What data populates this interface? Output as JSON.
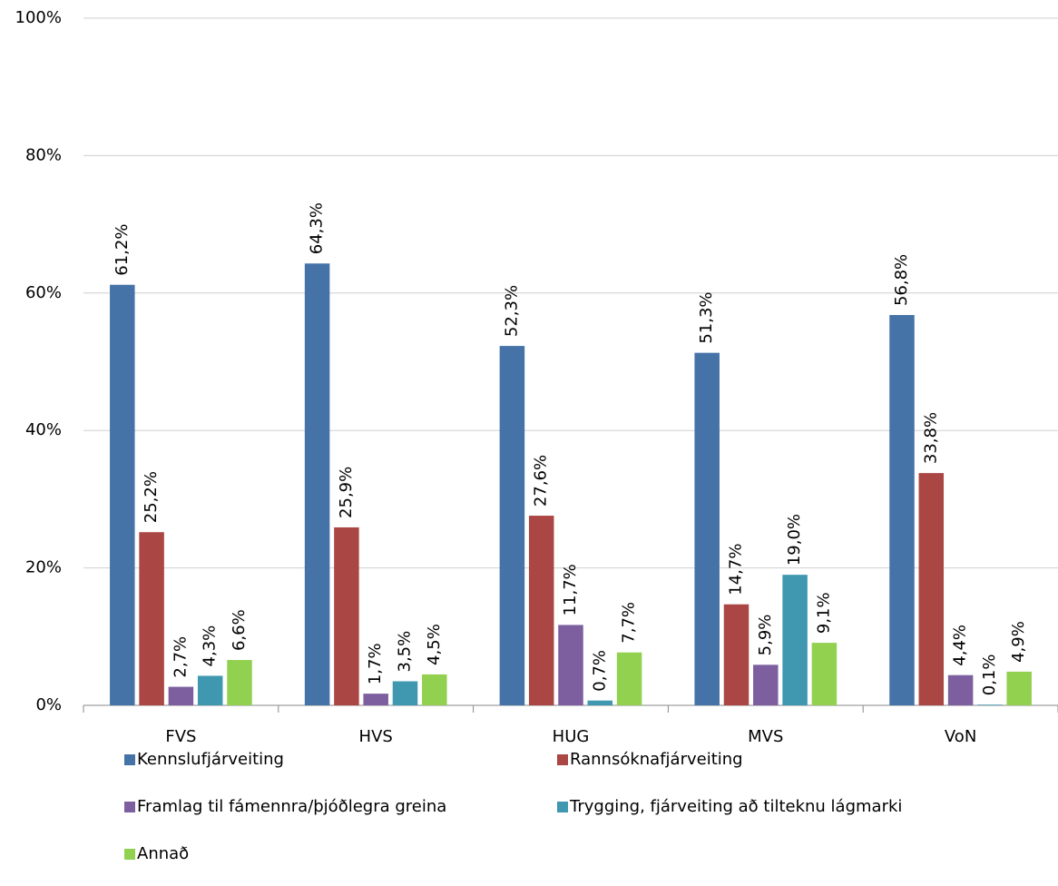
{
  "chart_data": {
    "type": "bar",
    "categories": [
      "FVS",
      "HVS",
      "HUG",
      "MVS",
      "VoN"
    ],
    "series": [
      {
        "name": "Kennslufjárveiting",
        "color": "#4572a7",
        "values": [
          61.2,
          64.3,
          52.3,
          51.3,
          56.8
        ],
        "value_labels": [
          "61,2%",
          "64,3%",
          "52,3%",
          "51,3%",
          "56,8%"
        ]
      },
      {
        "name": "Rannsóknafjárveiting",
        "color": "#aa4643",
        "values": [
          25.2,
          25.9,
          27.6,
          14.7,
          33.8
        ],
        "value_labels": [
          "25,2%",
          "25,9%",
          "27,6%",
          "14,7%",
          "33,8%"
        ]
      },
      {
        "name": "Framlag til fámennra/þjóðlegra greina",
        "color": "#7d5fa0",
        "values": [
          2.7,
          1.7,
          11.7,
          5.9,
          4.4
        ],
        "value_labels": [
          "2,7%",
          "1,7%",
          "11,7%",
          "5,9%",
          "4,4%"
        ]
      },
      {
        "name": "Trygging, fjárveiting að tilteknu lágmarki",
        "color": "#3f98b0",
        "values": [
          4.3,
          3.5,
          0.7,
          19.0,
          0.1
        ],
        "value_labels": [
          "4,3%",
          "3,5%",
          "0,7%",
          "19,0%",
          "0,1%"
        ]
      },
      {
        "name": "Annað",
        "color": "#92d050",
        "values": [
          6.6,
          4.5,
          7.7,
          9.1,
          4.9
        ],
        "value_labels": [
          "6,6%",
          "4,5%",
          "7,7%",
          "9,1%",
          "4,9%"
        ]
      }
    ],
    "ylim": [
      0,
      100
    ],
    "yticks": [
      {
        "value": 0,
        "label": "0%"
      },
      {
        "value": 20,
        "label": "20%"
      },
      {
        "value": 40,
        "label": "40%"
      },
      {
        "value": 60,
        "label": "60%"
      },
      {
        "value": 80,
        "label": "80%"
      },
      {
        "value": 100,
        "label": "100%"
      }
    ],
    "grid": true
  }
}
